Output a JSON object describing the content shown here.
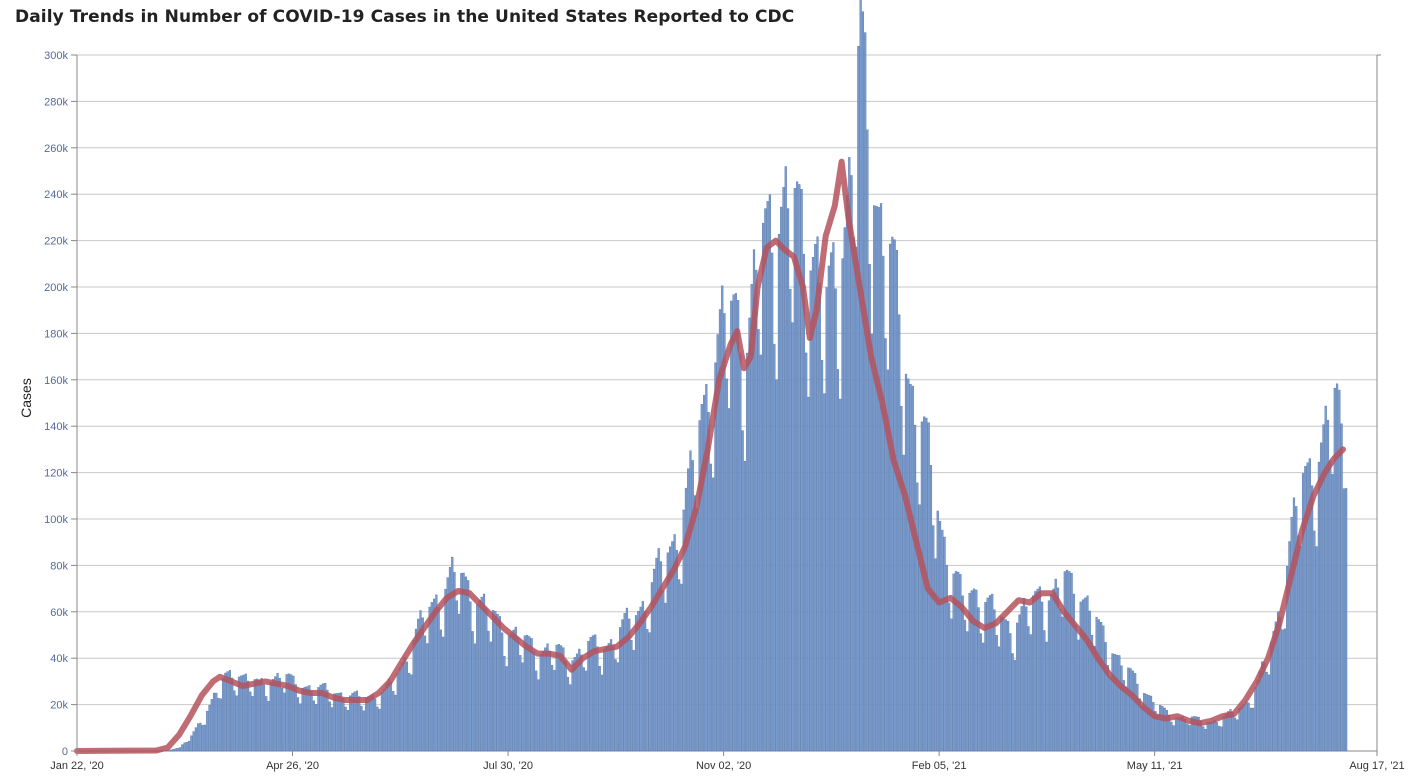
{
  "chart_data": {
    "type": "bar",
    "title": "Daily Trends in Number of COVID-19 Cases in the United States Reported to CDC",
    "ylabel": "Cases",
    "xlabel": "",
    "ylim": [
      0,
      300000
    ],
    "y_ticks": [
      "0",
      "20k",
      "40k",
      "60k",
      "80k",
      "100k",
      "120k",
      "140k",
      "160k",
      "180k",
      "200k",
      "220k",
      "240k",
      "260k",
      "280k",
      "300k"
    ],
    "x_ticks": [
      "Jan 22, '20",
      "Apr 26, '20",
      "Jul 30, '20",
      "Nov 02, '20",
      "Feb 05, '21",
      "May 11, '21",
      "Aug 17, '21"
    ],
    "x_range": [
      "2020-01-22",
      "2021-08-17"
    ],
    "grid": true,
    "colors": {
      "bars": "#7b9bcc",
      "bar_edge": "#4a6fa8",
      "average_line": "#b5525c"
    },
    "series": [
      {
        "chart": "bar",
        "description_points": "daily cases (approx, day index from Jan 22 '20)",
        "points": [
          [
            0,
            0
          ],
          [
            30,
            0
          ],
          [
            40,
            200
          ],
          [
            45,
            1500
          ],
          [
            50,
            6000
          ],
          [
            55,
            14000
          ],
          [
            60,
            22000
          ],
          [
            65,
            30000
          ],
          [
            70,
            33000
          ],
          [
            75,
            29000
          ],
          [
            80,
            27000
          ],
          [
            85,
            30000
          ],
          [
            90,
            31000
          ],
          [
            95,
            28000
          ],
          [
            100,
            27000
          ],
          [
            105,
            25000
          ],
          [
            110,
            25000
          ],
          [
            115,
            24000
          ],
          [
            120,
            22000
          ],
          [
            125,
            22000
          ],
          [
            130,
            23000
          ],
          [
            135,
            24000
          ],
          [
            140,
            30000
          ],
          [
            145,
            40000
          ],
          [
            150,
            50000
          ],
          [
            155,
            58000
          ],
          [
            160,
            66000
          ],
          [
            165,
            72000
          ],
          [
            170,
            70000
          ],
          [
            175,
            64000
          ],
          [
            180,
            58000
          ],
          [
            185,
            53000
          ],
          [
            190,
            50000
          ],
          [
            195,
            46000
          ],
          [
            200,
            43000
          ],
          [
            205,
            42000
          ],
          [
            210,
            42000
          ],
          [
            215,
            38000
          ],
          [
            220,
            40000
          ],
          [
            225,
            43000
          ],
          [
            230,
            43000
          ],
          [
            235,
            45000
          ],
          [
            240,
            50000
          ],
          [
            245,
            56000
          ],
          [
            250,
            62000
          ],
          [
            255,
            72000
          ],
          [
            260,
            82000
          ],
          [
            265,
            92000
          ],
          [
            270,
            110000
          ],
          [
            275,
            140000
          ],
          [
            280,
            160000
          ],
          [
            285,
            175000
          ],
          [
            290,
            182000
          ],
          [
            295,
            170000
          ],
          [
            300,
            200000
          ],
          [
            305,
            218000
          ],
          [
            310,
            225000
          ],
          [
            315,
            220000
          ],
          [
            320,
            215000
          ],
          [
            325,
            205000
          ],
          [
            330,
            180000
          ],
          [
            335,
            200000
          ],
          [
            340,
            235000
          ],
          [
            345,
            285000
          ],
          [
            350,
            240000
          ],
          [
            355,
            215000
          ],
          [
            360,
            190000
          ],
          [
            365,
            160000
          ],
          [
            370,
            140000
          ],
          [
            375,
            120000
          ],
          [
            380,
            95000
          ],
          [
            385,
            75000
          ],
          [
            390,
            62000
          ],
          [
            395,
            66000
          ],
          [
            400,
            62000
          ],
          [
            405,
            55000
          ],
          [
            410,
            52000
          ],
          [
            415,
            55000
          ],
          [
            420,
            60000
          ],
          [
            425,
            66000
          ],
          [
            430,
            64000
          ],
          [
            435,
            70000
          ],
          [
            440,
            68000
          ],
          [
            445,
            60000
          ],
          [
            450,
            50000
          ],
          [
            455,
            44000
          ],
          [
            460,
            36000
          ],
          [
            465,
            30000
          ],
          [
            470,
            25000
          ],
          [
            475,
            20000
          ],
          [
            480,
            15000
          ],
          [
            485,
            14000
          ],
          [
            490,
            14000
          ],
          [
            495,
            12000
          ],
          [
            500,
            12000
          ],
          [
            505,
            14000
          ],
          [
            510,
            16000
          ],
          [
            515,
            20000
          ],
          [
            520,
            28000
          ],
          [
            525,
            40000
          ],
          [
            530,
            60000
          ],
          [
            535,
            90000
          ],
          [
            540,
            110000
          ],
          [
            545,
            120000
          ],
          [
            550,
            130000
          ],
          [
            553,
            142000
          ],
          [
            555,
            142000
          ],
          [
            556,
            140000
          ],
          [
            558,
            115000
          ],
          [
            559,
            142000
          ]
        ]
      },
      {
        "chart": "line",
        "name": "",
        "points": [
          [
            0,
            0
          ],
          [
            35,
            200
          ],
          [
            40,
            1500
          ],
          [
            45,
            7000
          ],
          [
            50,
            15000
          ],
          [
            55,
            24000
          ],
          [
            60,
            30000
          ],
          [
            63,
            32000
          ],
          [
            68,
            30000
          ],
          [
            73,
            28000
          ],
          [
            78,
            29000
          ],
          [
            83,
            30000
          ],
          [
            88,
            29000
          ],
          [
            93,
            28000
          ],
          [
            98,
            26000
          ],
          [
            103,
            25000
          ],
          [
            108,
            25000
          ],
          [
            113,
            23000
          ],
          [
            118,
            22000
          ],
          [
            123,
            22000
          ],
          [
            128,
            22000
          ],
          [
            133,
            25000
          ],
          [
            138,
            30000
          ],
          [
            143,
            38000
          ],
          [
            148,
            46000
          ],
          [
            153,
            53000
          ],
          [
            158,
            60000
          ],
          [
            163,
            66000
          ],
          [
            168,
            69000
          ],
          [
            173,
            68000
          ],
          [
            178,
            63000
          ],
          [
            183,
            58000
          ],
          [
            188,
            53000
          ],
          [
            193,
            49000
          ],
          [
            198,
            45000
          ],
          [
            203,
            42000
          ],
          [
            208,
            42000
          ],
          [
            213,
            41000
          ],
          [
            218,
            35000
          ],
          [
            223,
            40000
          ],
          [
            228,
            43000
          ],
          [
            233,
            44000
          ],
          [
            238,
            45000
          ],
          [
            243,
            49000
          ],
          [
            248,
            55000
          ],
          [
            253,
            62000
          ],
          [
            258,
            70000
          ],
          [
            263,
            78000
          ],
          [
            268,
            88000
          ],
          [
            273,
            105000
          ],
          [
            278,
            130000
          ],
          [
            283,
            160000
          ],
          [
            288,
            175000
          ],
          [
            291,
            181000
          ],
          [
            294,
            165000
          ],
          [
            297,
            170000
          ],
          [
            300,
            200000
          ],
          [
            304,
            217000
          ],
          [
            308,
            220000
          ],
          [
            312,
            216000
          ],
          [
            316,
            213000
          ],
          [
            320,
            200000
          ],
          [
            323,
            178000
          ],
          [
            326,
            190000
          ],
          [
            330,
            222000
          ],
          [
            334,
            235000
          ],
          [
            337,
            254000
          ],
          [
            340,
            230000
          ],
          [
            345,
            200000
          ],
          [
            350,
            170000
          ],
          [
            355,
            150000
          ],
          [
            360,
            125000
          ],
          [
            365,
            110000
          ],
          [
            370,
            90000
          ],
          [
            375,
            70000
          ],
          [
            380,
            64000
          ],
          [
            385,
            66000
          ],
          [
            390,
            62000
          ],
          [
            395,
            56000
          ],
          [
            400,
            53000
          ],
          [
            405,
            55000
          ],
          [
            410,
            60000
          ],
          [
            415,
            65000
          ],
          [
            420,
            64000
          ],
          [
            425,
            68000
          ],
          [
            430,
            68000
          ],
          [
            435,
            60000
          ],
          [
            440,
            54000
          ],
          [
            445,
            48000
          ],
          [
            450,
            40000
          ],
          [
            455,
            33000
          ],
          [
            460,
            28000
          ],
          [
            465,
            24000
          ],
          [
            470,
            19000
          ],
          [
            475,
            15000
          ],
          [
            480,
            14000
          ],
          [
            485,
            15000
          ],
          [
            490,
            13000
          ],
          [
            495,
            12000
          ],
          [
            500,
            13000
          ],
          [
            505,
            15000
          ],
          [
            510,
            16000
          ],
          [
            515,
            22000
          ],
          [
            520,
            30000
          ],
          [
            525,
            40000
          ],
          [
            530,
            55000
          ],
          [
            535,
            75000
          ],
          [
            540,
            95000
          ],
          [
            545,
            110000
          ],
          [
            550,
            120000
          ],
          [
            554,
            126000
          ],
          [
            558,
            130000
          ]
        ]
      }
    ]
  }
}
